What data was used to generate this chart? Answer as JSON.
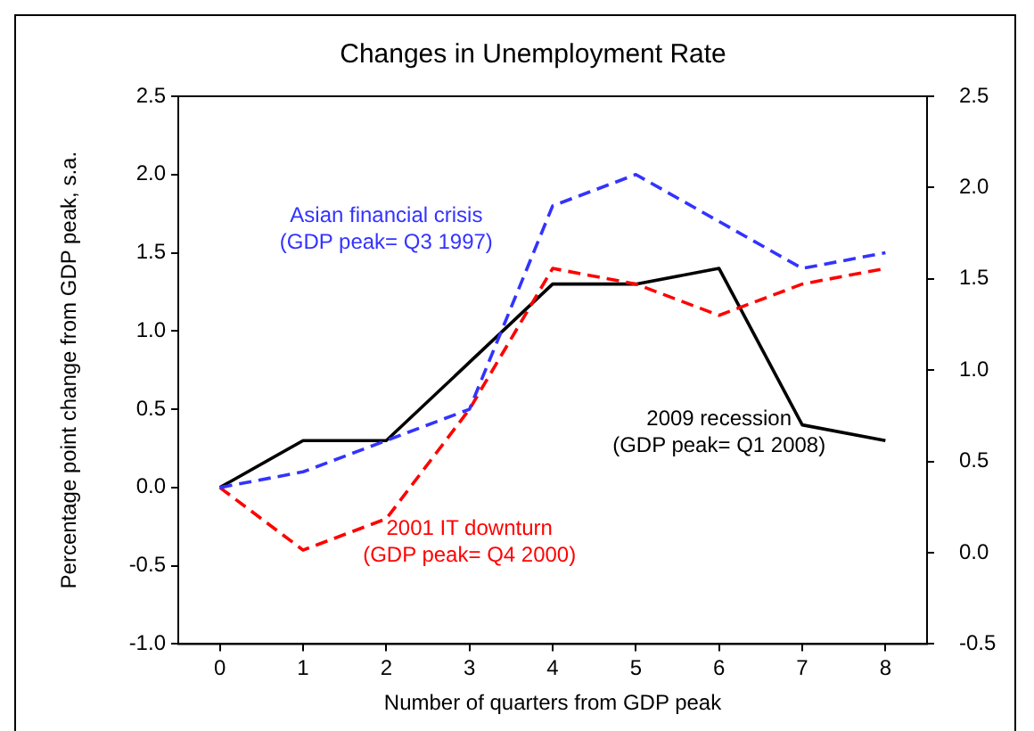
{
  "chart_data": {
    "type": "line",
    "title": "Changes in Unemployment Rate",
    "xlabel": "Number of quarters from GDP peak",
    "ylabel": "Percentage point change from GDP peak, s.a.",
    "categories": [
      "0",
      "1",
      "2",
      "3",
      "4",
      "5",
      "6",
      "7",
      "8"
    ],
    "series": [
      {
        "color": "#3333ff",
        "line_style": "dashed",
        "values": [
          0,
          0.1,
          0.3,
          0.5,
          1.8,
          2.0,
          1.7,
          1.4,
          1.5
        ]
      },
      {
        "color": "#ff0000",
        "line_style": "dashed",
        "values": [
          0,
          -0.4,
          -0.2,
          0.5,
          1.4,
          1.3,
          1.1,
          1.3,
          1.4
        ]
      },
      {
        "color": "#000000",
        "line_style": "solid",
        "values": [
          0,
          0.3,
          0.3,
          0.8,
          1.3,
          1.3,
          1.4,
          0.4,
          0.3
        ]
      }
    ],
    "ylim": [
      -1.0,
      2.5
    ],
    "yticks": [
      {
        "value": -1,
        "label": "-1.0"
      },
      {
        "value": -0.5,
        "label": "-0.5"
      },
      {
        "value": 0,
        "label": "0.0"
      },
      {
        "value": 0.5,
        "label": "0.5"
      },
      {
        "value": 1,
        "label": "1.0"
      },
      {
        "value": 1.5,
        "label": "1.5"
      },
      {
        "value": 2,
        "label": "2.0"
      },
      {
        "value": 2.5,
        "label": "2.5"
      }
    ],
    "y2lim": [
      -0.5,
      2.5
    ],
    "y2ticks": [
      {
        "value": -0.5,
        "label": "-0.5"
      },
      {
        "value": 0,
        "label": "0.0"
      },
      {
        "value": 0.5,
        "label": "0.5"
      },
      {
        "value": 1,
        "label": "1.0"
      },
      {
        "value": 1.5,
        "label": "1.5"
      },
      {
        "value": 2,
        "label": "2.0"
      },
      {
        "value": 2.5,
        "label": "2.5"
      }
    ],
    "annotations": [
      "Asian financial crisis\n(GDP peak= Q3 1997)",
      "2001 IT downturn\n(GDP peak= Q4 2000)",
      "2009 recession\n(GDP peak= Q1 2008)"
    ],
    "grid": false,
    "legend": false,
    "marker": "none"
  }
}
